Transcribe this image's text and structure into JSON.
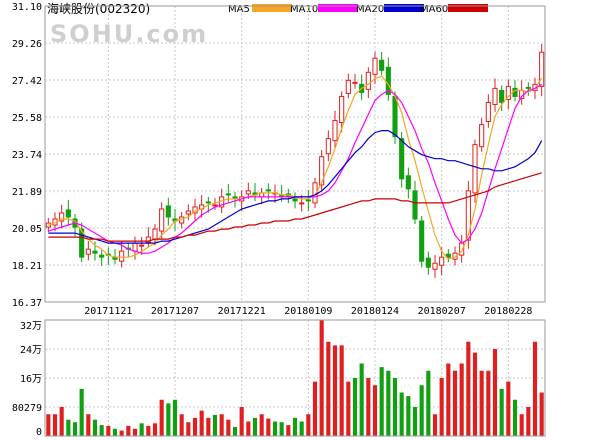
{
  "header": {
    "name_label": "海峡股份(002320)",
    "watermark": "SOHU.com"
  },
  "legend": [
    {
      "label": "MA5",
      "color": "#f5a623"
    },
    {
      "label": "MA10",
      "color": "#ff00ff"
    },
    {
      "label": "MA20",
      "color": "#0000cc"
    },
    {
      "label": "MA60",
      "color": "#cc0000"
    }
  ],
  "colors": {
    "up": "#e02020",
    "down": "#11a011",
    "grid": "#c8c8c8"
  },
  "chart_data": [
    {
      "type": "candlestick",
      "title": "",
      "ylim": [
        16.37,
        31.1
      ],
      "yticks": [
        "31.10",
        "29.26",
        "27.42",
        "25.58",
        "23.74",
        "21.89",
        "20.05",
        "18.21",
        "16.37"
      ],
      "xtick_labels": [
        "20171121",
        "20171207",
        "20171221",
        "20180109",
        "20180124",
        "20180207",
        "20180228"
      ],
      "xtick_index": [
        9,
        19,
        29,
        39,
        49,
        59,
        69
      ],
      "close": [
        20.3,
        20.5,
        20.8,
        20.6,
        20.1,
        18.6,
        19.0,
        18.8,
        18.6,
        18.7,
        18.5,
        18.9,
        19.0,
        19.3,
        19.2,
        19.6,
        20.0,
        21.0,
        20.6,
        20.4,
        20.6,
        20.9,
        21.1,
        21.2,
        21.3,
        21.2,
        21.6,
        21.7,
        21.5,
        21.6,
        21.9,
        21.7,
        21.8,
        21.9,
        21.8,
        21.6,
        21.6,
        21.4,
        21.3,
        21.4,
        22.3,
        23.6,
        24.5,
        25.4,
        26.6,
        27.4,
        27.3,
        26.8,
        27.8,
        28.5,
        27.9,
        26.7,
        24.6,
        22.5,
        22.0,
        20.5,
        18.4,
        18.1,
        18.3,
        18.6,
        18.6,
        18.8,
        19.3,
        21.9,
        24.2,
        25.2,
        26.3,
        27.0,
        26.3,
        27.1,
        26.6,
        26.9,
        27.0,
        27.2,
        28.8
      ],
      "ma5": [
        20.2,
        20.3,
        20.5,
        20.5,
        20.4,
        19.9,
        19.5,
        19.2,
        19.0,
        18.7,
        18.6,
        18.6,
        18.6,
        18.7,
        18.9,
        19.1,
        19.3,
        19.7,
        20.0,
        20.4,
        20.5,
        20.6,
        20.9,
        21.0,
        21.2,
        21.3,
        21.4,
        21.5,
        21.5,
        21.5,
        21.6,
        21.7,
        21.8,
        21.8,
        21.8,
        21.7,
        21.7,
        21.6,
        21.5,
        21.5,
        21.7,
        22.3,
        23.1,
        24.0,
        25.0,
        25.9,
        26.7,
        27.0,
        27.2,
        27.5,
        27.6,
        27.2,
        26.6,
        25.8,
        24.5,
        23.4,
        22.1,
        20.9,
        19.7,
        18.9,
        18.5,
        18.6,
        18.9,
        19.7,
        21.0,
        22.7,
        24.2,
        25.6,
        26.2,
        26.6,
        26.9,
        26.9,
        26.8,
        27.0,
        27.5
      ],
      "ma10": [
        19.9,
        20.0,
        20.1,
        20.2,
        20.3,
        20.2,
        20.0,
        19.8,
        19.6,
        19.4,
        19.3,
        19.2,
        19.0,
        18.9,
        18.8,
        18.8,
        18.9,
        19.1,
        19.3,
        19.6,
        19.8,
        20.1,
        20.4,
        20.7,
        20.9,
        21.1,
        21.2,
        21.3,
        21.4,
        21.5,
        21.6,
        21.6,
        21.6,
        21.6,
        21.6,
        21.6,
        21.6,
        21.6,
        21.6,
        21.6,
        21.6,
        21.7,
        21.9,
        22.3,
        22.9,
        23.5,
        24.3,
        25.0,
        25.7,
        26.4,
        26.7,
        26.9,
        26.7,
        26.3,
        25.6,
        24.9,
        24.0,
        23.3,
        22.3,
        21.4,
        20.5,
        19.7,
        19.3,
        19.5,
        20.0,
        20.8,
        21.9,
        23.0,
        24.0,
        25.0,
        26.0,
        26.6,
        26.9,
        27.0,
        27.2
      ],
      "ma20": [
        19.8,
        19.8,
        19.8,
        19.8,
        19.8,
        19.7,
        19.6,
        19.5,
        19.4,
        19.3,
        19.3,
        19.3,
        19.3,
        19.3,
        19.3,
        19.3,
        19.3,
        19.4,
        19.4,
        19.5,
        19.6,
        19.7,
        19.8,
        19.9,
        20.0,
        20.2,
        20.4,
        20.6,
        20.8,
        21.0,
        21.1,
        21.2,
        21.3,
        21.4,
        21.4,
        21.5,
        21.5,
        21.6,
        21.6,
        21.6,
        21.7,
        21.9,
        22.2,
        22.6,
        23.0,
        23.4,
        23.8,
        24.1,
        24.5,
        24.8,
        24.9,
        24.9,
        24.7,
        24.4,
        24.1,
        23.9,
        23.7,
        23.6,
        23.5,
        23.5,
        23.4,
        23.4,
        23.3,
        23.2,
        23.1,
        23.0,
        23.0,
        22.9,
        22.9,
        23.0,
        23.1,
        23.3,
        23.5,
        23.8,
        24.4
      ],
      "ma60": [
        19.6,
        19.6,
        19.6,
        19.6,
        19.6,
        19.6,
        19.5,
        19.5,
        19.5,
        19.4,
        19.4,
        19.4,
        19.4,
        19.4,
        19.4,
        19.4,
        19.5,
        19.5,
        19.5,
        19.6,
        19.6,
        19.7,
        19.7,
        19.8,
        19.9,
        19.9,
        20.0,
        20.0,
        20.1,
        20.1,
        20.2,
        20.2,
        20.3,
        20.3,
        20.4,
        20.4,
        20.4,
        20.5,
        20.5,
        20.6,
        20.7,
        20.8,
        20.9,
        21.0,
        21.1,
        21.2,
        21.3,
        21.4,
        21.4,
        21.5,
        21.5,
        21.5,
        21.5,
        21.4,
        21.4,
        21.3,
        21.3,
        21.3,
        21.3,
        21.3,
        21.3,
        21.4,
        21.5,
        21.6,
        21.7,
        21.8,
        21.9,
        22.1,
        22.2,
        22.3,
        22.4,
        22.5,
        22.6,
        22.7,
        22.8
      ]
    },
    {
      "type": "bar",
      "title": "",
      "yticks": [
        "32万",
        "24万",
        "16万",
        "80279",
        "0"
      ],
      "ylim": [
        0,
        320000
      ],
      "values": [
        60000,
        60000,
        80000,
        45000,
        38000,
        130000,
        60000,
        45000,
        30000,
        28000,
        20000,
        15000,
        28000,
        20000,
        35000,
        28000,
        35000,
        100000,
        90000,
        100000,
        60000,
        38000,
        50000,
        70000,
        50000,
        58000,
        60000,
        45000,
        25000,
        80000,
        40000,
        50000,
        60000,
        48000,
        40000,
        38000,
        30000,
        50000,
        40000,
        60000,
        150000,
        320000,
        260000,
        250000,
        250000,
        150000,
        160000,
        200000,
        160000,
        140000,
        190000,
        180000,
        160000,
        120000,
        110000,
        80000,
        140000,
        180000,
        60000,
        160000,
        200000,
        180000,
        200000,
        260000,
        230000,
        180000,
        180000,
        240000,
        130000,
        150000,
        100000,
        60000,
        80000,
        260000,
        120000
      ]
    }
  ]
}
